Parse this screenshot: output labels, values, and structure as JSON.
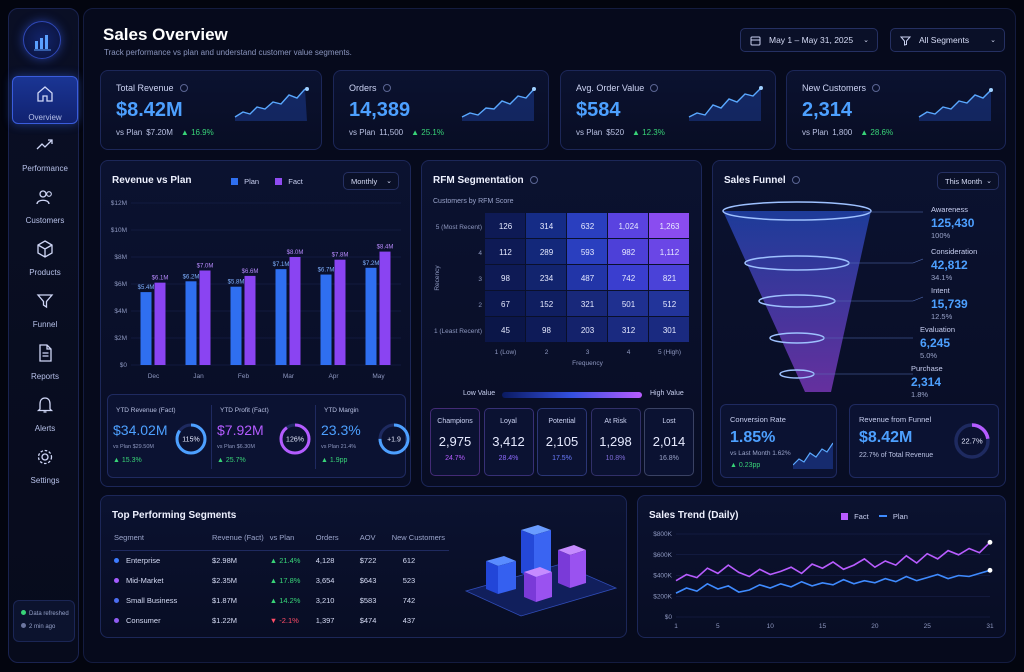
{
  "sidebar": {
    "items": [
      {
        "label": "Overview",
        "icon": "home-icon"
      },
      {
        "label": "Performance",
        "icon": "trend-icon"
      },
      {
        "label": "Customers",
        "icon": "users-icon"
      },
      {
        "label": "Products",
        "icon": "box-icon"
      },
      {
        "label": "Funnel",
        "icon": "funnel-icon"
      },
      {
        "label": "Reports",
        "icon": "document-icon"
      },
      {
        "label": "Alerts",
        "icon": "bell-icon"
      },
      {
        "label": "Settings",
        "icon": "gear-icon"
      }
    ],
    "refresh": {
      "status": "Data refreshed",
      "time": "2 min ago"
    }
  },
  "header": {
    "title": "Sales Overview",
    "subtitle": "Track performance vs plan and understand customer value segments.",
    "date_range": "May 1 – May 31, 2025",
    "segments": "All Segments"
  },
  "kpis": [
    {
      "label": "Total Revenue",
      "value": "$8.42M",
      "plan_label": "vs Plan",
      "plan": "$7.20M",
      "delta": "▲ 16.9%"
    },
    {
      "label": "Orders",
      "value": "14,389",
      "plan_label": "vs Plan",
      "plan": "11,500",
      "delta": "▲ 25.1%"
    },
    {
      "label": "Avg. Order Value",
      "value": "$584",
      "plan_label": "vs Plan",
      "plan": "$520",
      "delta": "▲ 12.3%"
    },
    {
      "label": "New Customers",
      "value": "2,314",
      "plan_label": "vs Plan",
      "plan": "1,800",
      "delta": "▲ 28.6%"
    }
  ],
  "revenue_chart": {
    "title": "Revenue vs Plan",
    "legend": [
      "Plan",
      "Fact"
    ],
    "period": "Monthly",
    "chart_data": {
      "type": "bar",
      "categories": [
        "Dec",
        "Jan",
        "Feb",
        "Mar",
        "Apr",
        "May"
      ],
      "series": [
        {
          "name": "Plan",
          "values": [
            5.4,
            6.2,
            5.8,
            7.1,
            6.7,
            7.2
          ],
          "labels": [
            "$5.4M",
            "$6.2M",
            "$5.8M",
            "$7.1M",
            "$6.7M",
            "$7.2M"
          ]
        },
        {
          "name": "Fact",
          "values": [
            6.1,
            7.0,
            6.6,
            8.0,
            7.8,
            8.4
          ],
          "labels": [
            "$6.1M",
            "$7.0M",
            "$6.6M",
            "$8.0M",
            "$7.8M",
            "$8.4M"
          ]
        }
      ],
      "yticks": [
        "$0",
        "$2M",
        "$4M",
        "$6M",
        "$8M",
        "$10M",
        "$12M"
      ],
      "ylim": [
        0,
        12
      ]
    }
  },
  "ytd": [
    {
      "label": "YTD Revenue (Fact)",
      "value": "$34.02M",
      "plan": "vs Plan $29.50M",
      "delta": "▲ 15.3%",
      "ring": "115%",
      "pct": 0.85
    },
    {
      "label": "YTD Profit (Fact)",
      "value": "$7.92M",
      "plan": "vs Plan $6.30M",
      "delta": "▲ 25.7%",
      "ring": "126%",
      "pct": 0.9
    },
    {
      "label": "YTD Margin",
      "value": "23.3%",
      "plan": "vs Plan 21.4%",
      "delta": "▲ 1.9pp",
      "ring": "+1.9",
      "pct": 0.75
    }
  ],
  "rfm": {
    "title": "RFM Segmentation",
    "subtitle": "Customers by RFM Score",
    "ylabel": "Recency",
    "xlabel": "Frequency",
    "rows": [
      "5 (Most Recent)",
      "4",
      "3",
      "2",
      "1 (Least Recent)"
    ],
    "cols": [
      "1 (Low)",
      "2",
      "3",
      "4",
      "5 (High)"
    ],
    "chart_data": {
      "type": "heatmap",
      "values": [
        [
          126,
          314,
          632,
          1024,
          1263
        ],
        [
          112,
          289,
          593,
          982,
          1112
        ],
        [
          98,
          234,
          487,
          742,
          821
        ],
        [
          67,
          152,
          321,
          501,
          512
        ],
        [
          45,
          98,
          203,
          312,
          301
        ]
      ]
    },
    "scale_low": "Low Value",
    "scale_high": "High Value",
    "segments": [
      {
        "name": "Champions",
        "value": "2,975",
        "pct": "24.7%",
        "color": "#b45cff"
      },
      {
        "name": "Loyal",
        "value": "3,412",
        "pct": "28.4%",
        "color": "#8f6bff"
      },
      {
        "name": "Potential",
        "value": "2,105",
        "pct": "17.5%",
        "color": "#6c7dff"
      },
      {
        "name": "At Risk",
        "value": "1,298",
        "pct": "10.8%",
        "color": "#7f6dd8"
      },
      {
        "name": "Lost",
        "value": "2,014",
        "pct": "16.8%",
        "color": "#9aa3c8"
      }
    ]
  },
  "funnel": {
    "title": "Sales Funnel",
    "period": "This Month",
    "stages": [
      {
        "name": "Awareness",
        "value": "125,430",
        "pct": "100%"
      },
      {
        "name": "Consideration",
        "value": "42,812",
        "pct": "34.1%"
      },
      {
        "name": "Intent",
        "value": "15,739",
        "pct": "12.5%"
      },
      {
        "name": "Evaluation",
        "value": "6,245",
        "pct": "5.0%"
      },
      {
        "name": "Purchase",
        "value": "2,314",
        "pct": "1.8%"
      }
    ],
    "conversion": {
      "label": "Conversion Rate",
      "value": "1.85%",
      "sub": "vs Last Month 1.62%",
      "delta": "▲ 0.23pp"
    },
    "rev": {
      "label": "Revenue from Funnel",
      "value": "$8.42M",
      "sub": "22.7% of Total Revenue",
      "ring": "22.7%",
      "pct": 0.227
    }
  },
  "segments_table": {
    "title": "Top Performing Segments",
    "headers": [
      "Segment",
      "Revenue (Fact)",
      "vs Plan",
      "Orders",
      "AOV",
      "New Customers"
    ],
    "rows": [
      {
        "name": "Enterprise",
        "color": "#3d7bff",
        "revenue": "$2.98M",
        "vs": "▲ 21.4%",
        "dir": "up",
        "orders": "4,128",
        "aov": "$722",
        "new": "612"
      },
      {
        "name": "Mid-Market",
        "color": "#a35cff",
        "revenue": "$2.35M",
        "vs": "▲ 17.8%",
        "dir": "up",
        "orders": "3,654",
        "aov": "$643",
        "new": "523"
      },
      {
        "name": "Small Business",
        "color": "#4c6df0",
        "revenue": "$1.87M",
        "vs": "▲ 14.2%",
        "dir": "up",
        "orders": "3,210",
        "aov": "$583",
        "new": "742"
      },
      {
        "name": "Consumer",
        "color": "#8e5cf2",
        "revenue": "$1.22M",
        "vs": "▼ -2.1%",
        "dir": "down",
        "orders": "1,397",
        "aov": "$474",
        "new": "437"
      }
    ]
  },
  "trend": {
    "title": "Sales Trend (Daily)",
    "legend": [
      "Fact",
      "Plan"
    ],
    "chart_data": {
      "type": "line",
      "xticks": [
        "1",
        "5",
        "10",
        "15",
        "20",
        "25",
        "31"
      ],
      "yticks": [
        "$0",
        "$200K",
        "$400K",
        "$600K",
        "$800K"
      ],
      "ylim": [
        0,
        800
      ],
      "series": [
        {
          "name": "Fact",
          "color": "#b85cff",
          "values": [
            350,
            410,
            380,
            470,
            420,
            500,
            430,
            390,
            460,
            410,
            440,
            480,
            420,
            510,
            470,
            530,
            460,
            500,
            560,
            480,
            540,
            500,
            590,
            520,
            610,
            560,
            640,
            600,
            660,
            620,
            720
          ]
        },
        {
          "name": "Plan",
          "color": "#3f8bff",
          "values": [
            230,
            280,
            250,
            320,
            270,
            300,
            240,
            260,
            310,
            280,
            320,
            290,
            340,
            300,
            330,
            310,
            360,
            320,
            350,
            330,
            370,
            340,
            390,
            350,
            380,
            410,
            370,
            400,
            390,
            420,
            450
          ]
        }
      ]
    }
  },
  "colors": {
    "accent": "#4da0ff",
    "purple": "#b45cff",
    "up": "#38d478",
    "down": "#ff4d68"
  }
}
